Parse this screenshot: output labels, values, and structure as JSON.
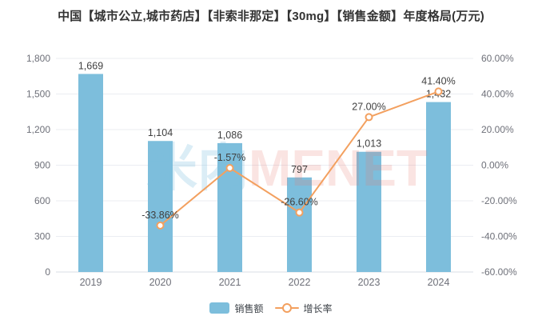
{
  "title": "中国【城市公立,城市药店】【非索非那定】【30mg】【销售金额】年度格局(万元)",
  "watermark": {
    "part1": "米内",
    "part2": "MENET"
  },
  "colors": {
    "bar": "#7dbedc",
    "line": "#f3a05f",
    "axis_text": "#6e7079",
    "value_text": "#404040",
    "grid": "#ebedf2",
    "axis_line": "#d9dce4",
    "watermark_blue": "rgba(125,191,222,0.28)",
    "watermark_red": "rgba(232,122,110,0.20)"
  },
  "legend": {
    "items": [
      {
        "label": "销售额",
        "type": "bar"
      },
      {
        "label": "增长率",
        "type": "line"
      }
    ]
  },
  "chart_data": {
    "type": "bar+line",
    "categories": [
      "2019",
      "2020",
      "2021",
      "2022",
      "2023",
      "2024"
    ],
    "series": [
      {
        "name": "销售额",
        "type": "bar",
        "axis": "left",
        "values": [
          1669,
          1104,
          1086,
          797,
          1013,
          1432
        ],
        "labels": [
          "1,669",
          "1,104",
          "1,086",
          "797",
          "1,013",
          "1,432"
        ]
      },
      {
        "name": "增长率",
        "type": "line",
        "axis": "right",
        "values": [
          null,
          -33.86,
          -1.57,
          -26.6,
          27.0,
          41.4
        ],
        "labels": [
          null,
          "-33.86%",
          "-1.57%",
          "-26.60%",
          "27.00%",
          "41.40%"
        ]
      }
    ],
    "left_axis": {
      "min": 0,
      "max": 1800,
      "ticks": [
        {
          "value": 0,
          "label": "0"
        },
        {
          "value": 300,
          "label": "300"
        },
        {
          "value": 600,
          "label": "600"
        },
        {
          "value": 900,
          "label": "900"
        },
        {
          "value": 1200,
          "label": "1,200"
        },
        {
          "value": 1500,
          "label": "1,500"
        },
        {
          "value": 1800,
          "label": "1,800"
        }
      ]
    },
    "right_axis": {
      "min": -60,
      "max": 60,
      "ticks": [
        {
          "value": -60,
          "label": "-60.00%"
        },
        {
          "value": -40,
          "label": "-40.00%"
        },
        {
          "value": -20,
          "label": "-20.00%"
        },
        {
          "value": 0,
          "label": "0.00%"
        },
        {
          "value": 20,
          "label": "20.00%"
        },
        {
          "value": 40,
          "label": "40.00%"
        },
        {
          "value": 60,
          "label": "60.00%"
        }
      ]
    },
    "grid": true,
    "legend_position": "bottom"
  }
}
